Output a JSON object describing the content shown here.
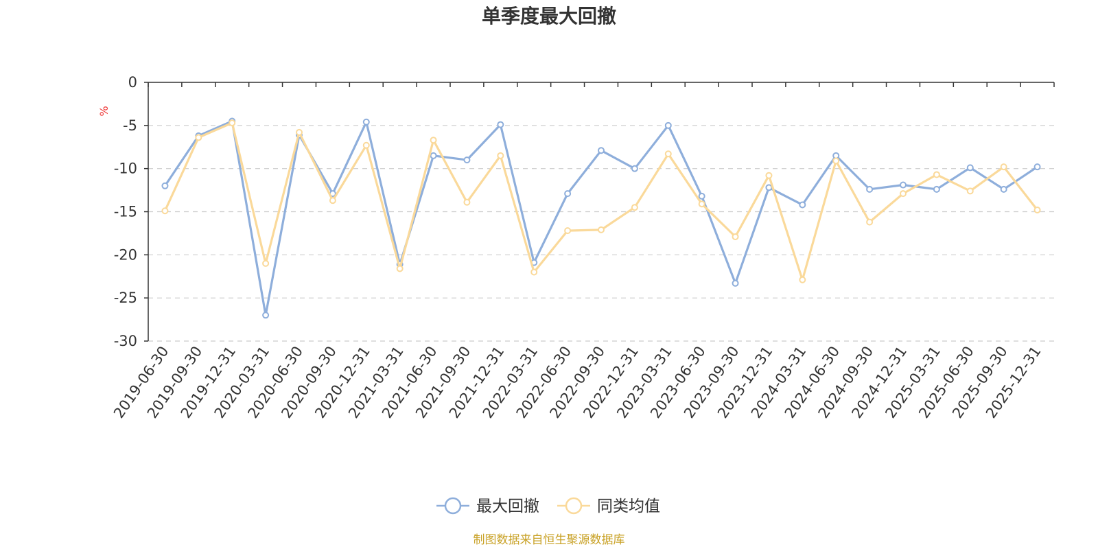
{
  "chart_data": {
    "type": "line",
    "title": "单季度最大回撤",
    "ylabel": "%",
    "xlabel": "",
    "ylim": [
      -30,
      0
    ],
    "yticks": [
      0,
      -5,
      -10,
      -15,
      -20,
      -25,
      -30
    ],
    "grid": true,
    "legend_position": "bottom-center",
    "categories": [
      "2019-06-30",
      "2019-09-30",
      "2019-12-31",
      "2020-03-31",
      "2020-06-30",
      "2020-09-30",
      "2020-12-31",
      "2021-03-31",
      "2021-06-30",
      "2021-09-30",
      "2021-12-31",
      "2022-03-31",
      "2022-06-30",
      "2022-09-30",
      "2022-12-31",
      "2023-03-31",
      "2023-06-30",
      "2023-09-30",
      "2023-12-31",
      "2024-03-31",
      "2024-06-30",
      "2024-09-30",
      "2024-12-31",
      "2025-03-31",
      "2025-06-30",
      "2025-09-30",
      "2025-12-31"
    ],
    "series": [
      {
        "name": "最大回撤",
        "color": "#8eaedb",
        "values": [
          -12.0,
          -6.2,
          -4.5,
          -27.0,
          -6.1,
          -12.9,
          -4.6,
          -21.1,
          -8.5,
          -9.0,
          -4.9,
          -20.9,
          -12.9,
          -7.9,
          -10.0,
          -5.0,
          -13.2,
          -23.3,
          -12.2,
          -14.2,
          -8.5,
          -12.4,
          -11.9,
          -12.4,
          -9.9,
          -12.4,
          -9.8
        ]
      },
      {
        "name": "同类均值",
        "color": "#fad99a",
        "values": [
          -14.9,
          -6.4,
          -4.7,
          -21.0,
          -5.8,
          -13.7,
          -7.3,
          -21.6,
          -6.7,
          -13.9,
          -8.5,
          -22.0,
          -17.2,
          -17.1,
          -14.5,
          -8.3,
          -14.1,
          -17.9,
          -10.8,
          -22.9,
          -9.1,
          -16.2,
          -12.9,
          -10.7,
          -12.6,
          -9.8,
          -14.8
        ]
      }
    ],
    "source": "制图数据来自恒生聚源数据库"
  }
}
